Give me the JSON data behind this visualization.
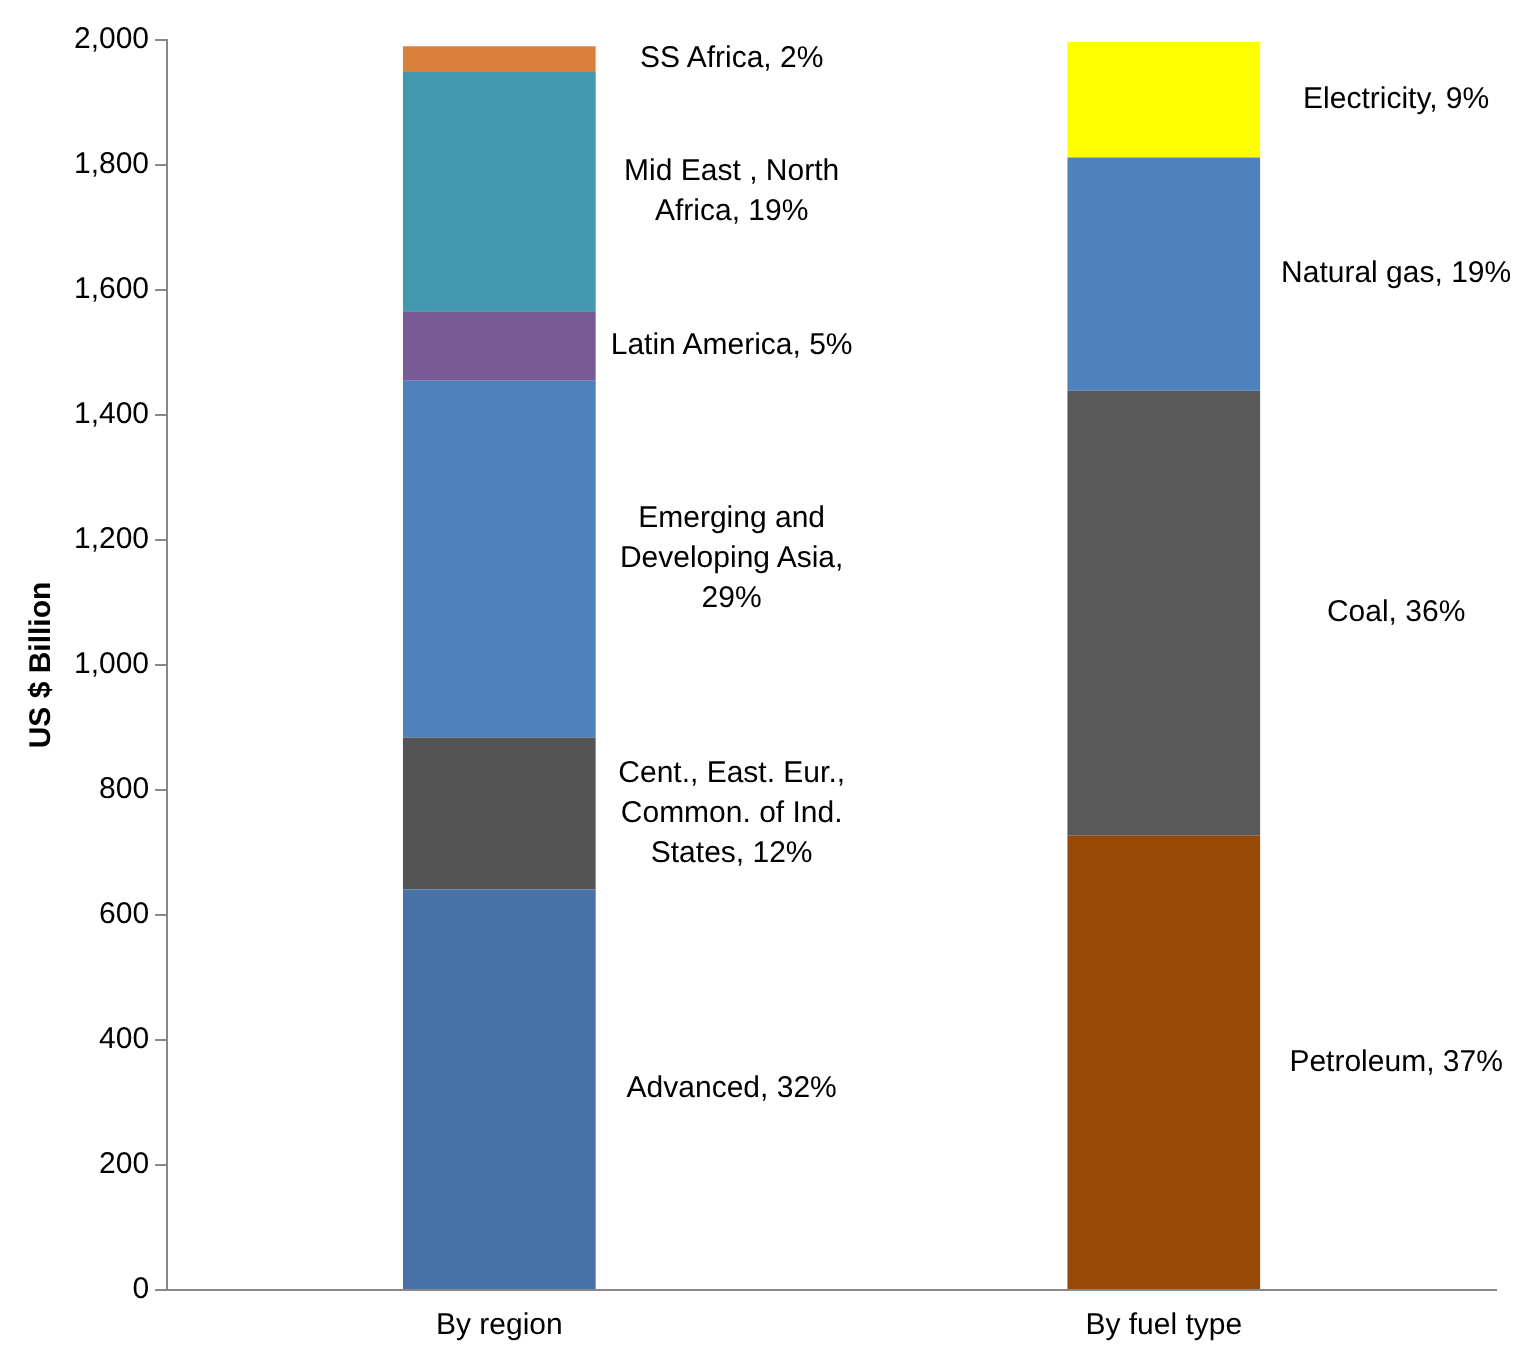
{
  "chart_data": {
    "type": "bar",
    "stacked": true,
    "ylabel": "US $ Billion",
    "categories": [
      "By region",
      "By fuel type"
    ],
    "series": [
      {
        "name": "Advanced, 32%",
        "color": "#4672a8",
        "values": [
          641,
          null
        ]
      },
      {
        "name": "Cent., East. Eur., Common. of Ind. States, 12%",
        "color": "#545454",
        "values": [
          243,
          null
        ]
      },
      {
        "name": "Emerging and Developing Asia, 29%",
        "color": "#4f81bd",
        "values": [
          571,
          null
        ]
      },
      {
        "name": "Latin America, 5%",
        "color": "#7a5a94",
        "values": [
          111,
          null
        ]
      },
      {
        "name": "Mid East , North Africa, 19%",
        "color": "#4198af",
        "values": [
          383,
          null
        ]
      },
      {
        "name": "SS Africa, 2%",
        "color": "#d9803c",
        "values": [
          41,
          null
        ]
      },
      {
        "name": "Petroleum, 37%",
        "color": "#984807",
        "values": [
          null,
          727
        ]
      },
      {
        "name": "Coal, 36%",
        "color": "#595959",
        "values": [
          null,
          712
        ]
      },
      {
        "name": "Natural gas, 19%",
        "color": "#4f81bd",
        "values": [
          null,
          373
        ]
      },
      {
        "name": "Electricity, 9%",
        "color": "#ffff00",
        "values": [
          null,
          185
        ]
      }
    ],
    "ylim": [
      0,
      2000
    ],
    "yticks": [
      {
        "value": 0,
        "label": "0"
      },
      {
        "value": 200,
        "label": "200"
      },
      {
        "value": 400,
        "label": "400"
      },
      {
        "value": 600,
        "label": "600"
      },
      {
        "value": 800,
        "label": "800"
      },
      {
        "value": 1000,
        "label": "1,000"
      },
      {
        "value": 1200,
        "label": "1,200"
      },
      {
        "value": 1400,
        "label": "1,400"
      },
      {
        "value": 1600,
        "label": "1,600"
      },
      {
        "value": 1800,
        "label": "1,800"
      },
      {
        "value": 2000,
        "label": "2,000"
      }
    ],
    "grid": false,
    "legend": false
  }
}
